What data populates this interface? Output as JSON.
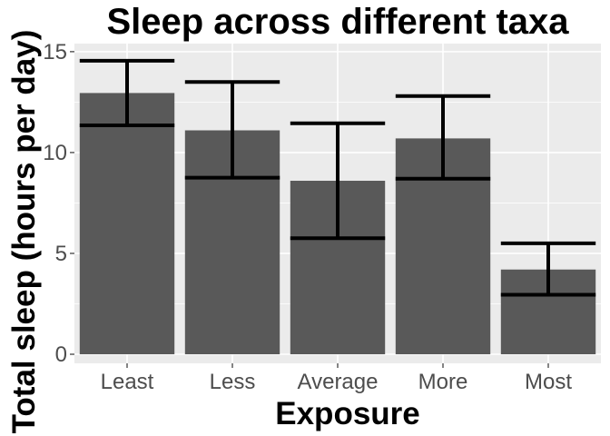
{
  "chart_data": {
    "type": "bar",
    "title": "Sleep across different taxa",
    "xlabel": "Exposure",
    "ylabel": "Total sleep (hours per day)",
    "categories": [
      "Least",
      "Less",
      "Average",
      "More",
      "Most"
    ],
    "values": [
      12.95,
      11.1,
      8.6,
      10.7,
      4.2
    ],
    "error_low": [
      11.35,
      8.75,
      5.75,
      8.7,
      2.95
    ],
    "error_high": [
      14.55,
      13.5,
      11.45,
      12.8,
      5.5
    ],
    "ylim": [
      -0.45,
      15.4
    ],
    "yticks": [
      0,
      5,
      10,
      15
    ],
    "grid": true,
    "legend": "none",
    "colors": {
      "panel": "#ebebeb",
      "grid_major": "#ffffff",
      "bar": "#595959",
      "errorbar": "#000000",
      "tick_label": "#4d4d4d"
    }
  }
}
